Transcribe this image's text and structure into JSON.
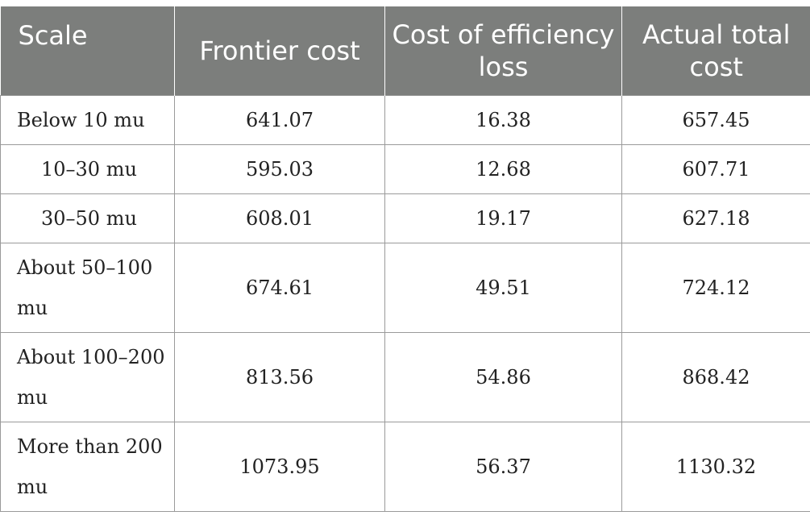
{
  "table": {
    "headers": [
      "Scale",
      "Frontier cost",
      "Cost of efficiency loss",
      "Actual total cost"
    ],
    "rows": [
      {
        "scale": "Below 10 mu",
        "frontier": "641.07",
        "loss": "16.38",
        "actual": "657.45"
      },
      {
        "scale": "10–30 mu",
        "frontier": "595.03",
        "loss": "12.68",
        "actual": "607.71"
      },
      {
        "scale": "30–50 mu",
        "frontier": "608.01",
        "loss": "19.17",
        "actual": "627.18"
      },
      {
        "scale": "About 50–100 mu",
        "frontier": "674.61",
        "loss": "49.51",
        "actual": "724.12"
      },
      {
        "scale": "About 100–200 mu",
        "frontier": "813.56",
        "loss": "54.86",
        "actual": "868.42"
      },
      {
        "scale": "More than 200 mu",
        "frontier": "1073.95",
        "loss": "56.37",
        "actual": "1130.32"
      }
    ]
  },
  "colors": {
    "header_bg": "#7c7e7c",
    "header_text": "#ffffff",
    "grid": "#9a9a9a"
  }
}
